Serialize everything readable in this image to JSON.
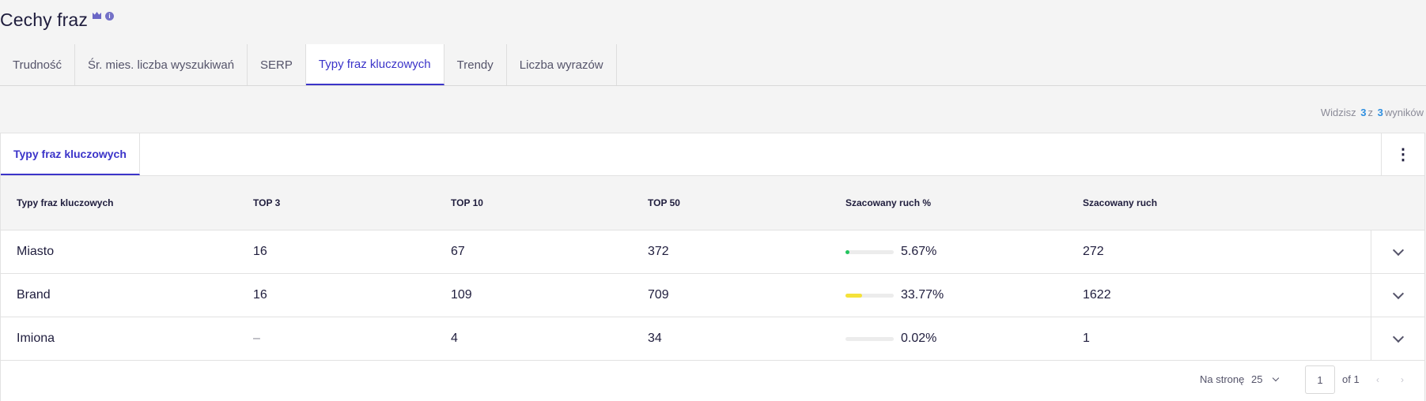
{
  "page": {
    "title": "Cechy fraz",
    "crown_icon": "crown-icon",
    "info_icon": "info-icon",
    "info_glyph": "i"
  },
  "tabs": [
    {
      "label": "Trudność",
      "active": false
    },
    {
      "label": "Śr. mies. liczba wyszukiwań",
      "active": false
    },
    {
      "label": "SERP",
      "active": false
    },
    {
      "label": "Typy fraz kluczowych",
      "active": true
    },
    {
      "label": "Trendy",
      "active": false
    },
    {
      "label": "Liczba wyrazów",
      "active": false
    }
  ],
  "results": {
    "prefix": "Widzisz",
    "shown": "3",
    "of": "z",
    "total": "3",
    "suffix": "wyników"
  },
  "panel": {
    "subtab_label": "Typy fraz kluczowych",
    "menu_icon": "more-vertical-icon",
    "menu_glyph": "⋮"
  },
  "table": {
    "headers": [
      "Typy fraz kluczowych",
      "TOP 3",
      "TOP 10",
      "TOP 50",
      "Szacowany ruch %",
      "Szacowany ruch"
    ],
    "rows": [
      {
        "type": "Miasto",
        "top3": "16",
        "top10": "67",
        "top50": "372",
        "traffic_pct": "5.67%",
        "traffic_pct_value": 5.67,
        "bar_color": "#22c55e",
        "traffic": "272"
      },
      {
        "type": "Brand",
        "top3": "16",
        "top10": "109",
        "top50": "709",
        "traffic_pct": "33.77%",
        "traffic_pct_value": 33.77,
        "bar_color": "#f5e23a",
        "traffic": "1622"
      },
      {
        "type": "Imiona",
        "top3": "–",
        "top10": "4",
        "top50": "34",
        "traffic_pct": "0.02%",
        "traffic_pct_value": 0.02,
        "bar_color": "#22c55e",
        "traffic": "1"
      }
    ]
  },
  "pagination": {
    "per_page_label": "Na stronę",
    "per_page_value": "25",
    "page_value": "1",
    "of_label": "of 1",
    "prev_glyph": "‹",
    "next_glyph": "›"
  },
  "colors": {
    "accent": "#3b34c9",
    "count": "#2f8fe0",
    "text": "#1f1d3d"
  }
}
